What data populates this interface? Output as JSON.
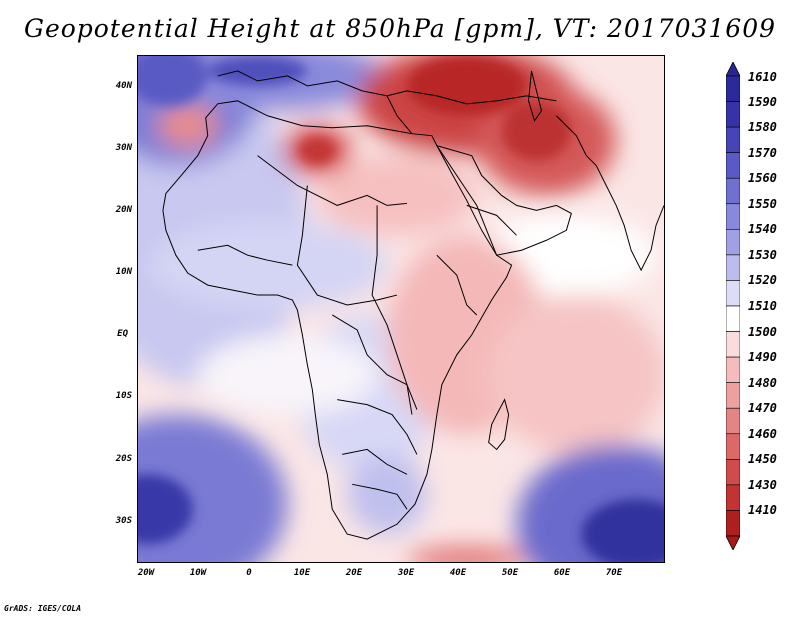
{
  "title": "Geopotential Height at 850hPa [gpm], VT: 2017031609",
  "credit": "GrADS: IGES/COLA",
  "lat_labels": [
    "40N",
    "30N",
    "20N",
    "10N",
    "EQ",
    "10S",
    "20S",
    "30S"
  ],
  "lon_labels": [
    "20W",
    "10W",
    "0",
    "10E",
    "20E",
    "30E",
    "40E",
    "50E",
    "60E",
    "70E"
  ],
  "colorbar": {
    "labels": [
      "1610",
      "1590",
      "1580",
      "1570",
      "1560",
      "1550",
      "1540",
      "1530",
      "1520",
      "1510",
      "1500",
      "1490",
      "1480",
      "1470",
      "1460",
      "1450",
      "1430",
      "1410"
    ],
    "colors": [
      "#2a2a9a",
      "#3434a8",
      "#4545b8",
      "#5a5ac6",
      "#7070d2",
      "#8888dc",
      "#a0a0e4",
      "#bcbcee",
      "#dcdcf6",
      "#ffffff",
      "#fadcdc",
      "#f4bcbc",
      "#eca0a0",
      "#e48484",
      "#dc6868",
      "#d04c4c",
      "#c23434",
      "#b01f1f"
    ],
    "tip_top_color": "#262694",
    "tip_bottom_color": "#a81a1a"
  },
  "map": {
    "background_color": "#fbe6e6",
    "region_colors": {
      "strong_high": "#3c3cb0",
      "high": "#8080d8",
      "mid_high": "#c0c0ee",
      "neutral": "#ffffff",
      "mid_low": "#f6c8c8",
      "low": "#e07070",
      "strong_low": "#c63838"
    }
  }
}
